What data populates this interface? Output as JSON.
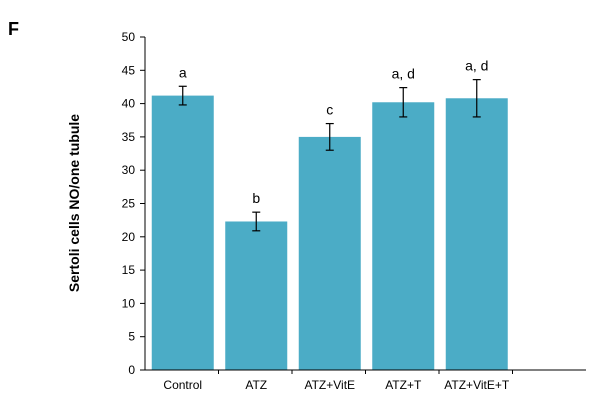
{
  "panel_label": "F",
  "chart_data": {
    "type": "bar",
    "title": "",
    "xlabel": "",
    "ylabel": "Sertoli cells NO/one tubule",
    "ylim": [
      0,
      50
    ],
    "yticks": [
      0,
      5,
      10,
      15,
      20,
      25,
      30,
      35,
      40,
      45,
      50
    ],
    "categories": [
      "Control",
      "ATZ",
      "ATZ+VitE",
      "ATZ+T",
      "ATZ+VitE+T"
    ],
    "values": [
      41.2,
      22.3,
      35.0,
      40.2,
      40.8
    ],
    "errors": [
      1.4,
      1.4,
      2.0,
      2.2,
      2.8
    ],
    "annotations": [
      "a",
      "b",
      "c",
      "a, d",
      "a, d"
    ],
    "bar_color": "#4bacc6",
    "grid": false,
    "legend": "none"
  }
}
